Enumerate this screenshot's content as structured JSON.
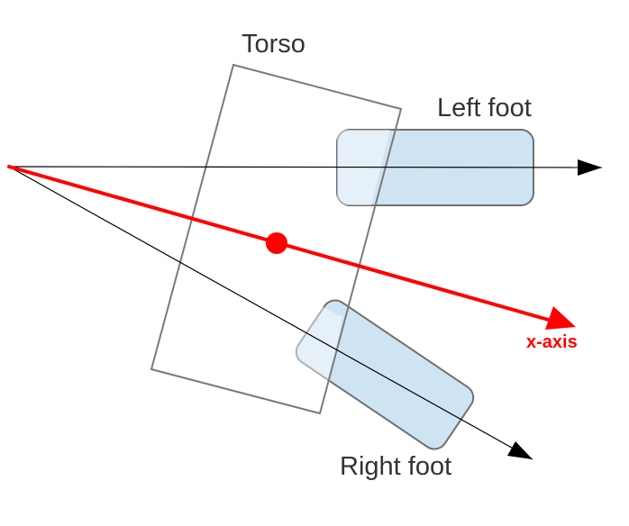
{
  "labels": {
    "torso": "Torso",
    "left_foot": "Left foot",
    "right_foot": "Right foot",
    "x_axis": "x-axis"
  },
  "colors": {
    "foot_fill": "#cfe4f2",
    "foot_stroke": "#707070",
    "torso_stroke": "#7a7a7a",
    "axis_line": "#000000",
    "x_axis_color": "#ff0000",
    "label_text": "#333333"
  },
  "icons": {
    "origin": "origin-point",
    "center_of_mass": "center-of-mass-dot"
  }
}
